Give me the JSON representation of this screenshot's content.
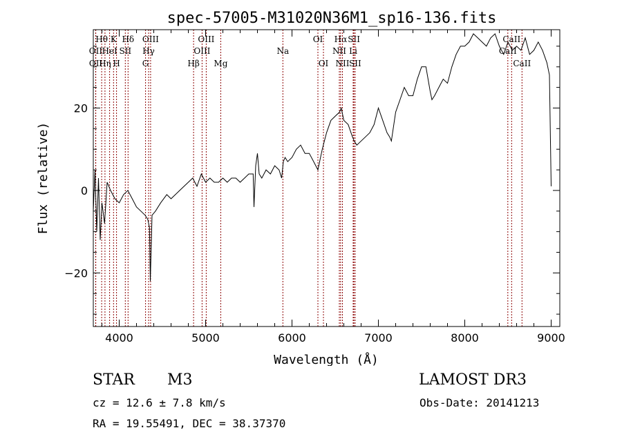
{
  "colors": {
    "spectrum": "#000000",
    "lines": "#8b0000",
    "axes": "#000000",
    "background": "#ffffff"
  },
  "chart_data": {
    "type": "line",
    "title": "spec-57005-M31020N36M1_sp16-136.fits",
    "xlabel": "Wavelength (Å)",
    "ylabel": "Flux (relative)",
    "xlim": [
      3700,
      9100
    ],
    "ylim": [
      -33,
      39
    ],
    "xticks": [
      4000,
      5000,
      6000,
      7000,
      8000,
      9000
    ],
    "yticks": [
      -20,
      0,
      20
    ],
    "series": [
      {
        "name": "flux",
        "x": [
          3700,
          3720,
          3740,
          3760,
          3780,
          3800,
          3830,
          3860,
          3900,
          3950,
          4000,
          4050,
          4100,
          4150,
          4200,
          4250,
          4300,
          4330,
          4350,
          4360,
          4380,
          4420,
          4480,
          4550,
          4600,
          4650,
          4700,
          4750,
          4800,
          4850,
          4900,
          4950,
          5000,
          5050,
          5100,
          5150,
          5200,
          5250,
          5300,
          5350,
          5400,
          5450,
          5500,
          5550,
          5560,
          5580,
          5600,
          5620,
          5650,
          5700,
          5750,
          5800,
          5850,
          5880,
          5900,
          5920,
          5950,
          6000,
          6050,
          6100,
          6150,
          6200,
          6250,
          6300,
          6320,
          6350,
          6400,
          6450,
          6500,
          6550,
          6570,
          6600,
          6650,
          6700,
          6720,
          6750,
          6800,
          6850,
          6900,
          6950,
          7000,
          7050,
          7100,
          7130,
          7150,
          7200,
          7250,
          7300,
          7350,
          7400,
          7450,
          7500,
          7550,
          7600,
          7620,
          7650,
          7700,
          7750,
          7800,
          7850,
          7900,
          7950,
          8000,
          8050,
          8100,
          8150,
          8200,
          8250,
          8300,
          8350,
          8400,
          8450,
          8500,
          8550,
          8600,
          8650,
          8700,
          8750,
          8800,
          8850,
          8900,
          8950,
          8980,
          9000
        ],
        "y": [
          -5,
          5,
          -10,
          3,
          -12,
          -3,
          -8,
          2,
          0,
          -2,
          -3,
          -1,
          0,
          -2,
          -4,
          -5,
          -6,
          -7,
          -9,
          -22,
          -6,
          -5,
          -3,
          -1,
          -2,
          -1,
          0,
          1,
          2,
          3,
          1,
          4,
          2,
          3,
          2,
          2,
          3,
          2,
          3,
          3,
          2,
          3,
          4,
          4,
          -4,
          6,
          9,
          4,
          3,
          5,
          4,
          6,
          5,
          3,
          7,
          8,
          7,
          8,
          10,
          11,
          9,
          9,
          7,
          5,
          7,
          10,
          14,
          17,
          18,
          19,
          20,
          17,
          16,
          13,
          12,
          11,
          12,
          13,
          14,
          16,
          20,
          17,
          14,
          13,
          12,
          19,
          22,
          25,
          23,
          23,
          27,
          30,
          30,
          24,
          22,
          23,
          25,
          27,
          26,
          30,
          33,
          35,
          35,
          36,
          38,
          37,
          36,
          35,
          37,
          38,
          35,
          33,
          36,
          34,
          35,
          34,
          37,
          33,
          34,
          36,
          34,
          31,
          28,
          1
        ]
      }
    ],
    "emission_lines": [
      {
        "label": "Hθ",
        "x": 3797,
        "row": 1
      },
      {
        "label": "OII",
        "x": 3727,
        "row": 2
      },
      {
        "label": "OII",
        "x": 3729,
        "row": 3
      },
      {
        "label": "K",
        "x": 3934,
        "row": 1
      },
      {
        "label": "HeI",
        "x": 3889,
        "row": 2
      },
      {
        "label": "Hη",
        "x": 3835,
        "row": 3
      },
      {
        "label": "H",
        "x": 3969,
        "row": 3
      },
      {
        "label": "Hδ",
        "x": 4102,
        "row": 1
      },
      {
        "label": "SII",
        "x": 4070,
        "row": 2
      },
      {
        "label": "OIII",
        "x": 4363,
        "row": 1
      },
      {
        "label": "Hγ",
        "x": 4340,
        "row": 2
      },
      {
        "label": "G",
        "x": 4305,
        "row": 3
      },
      {
        "label": "OIII",
        "x": 5007,
        "row": 1
      },
      {
        "label": "OIII",
        "x": 4959,
        "row": 2
      },
      {
        "label": "Hβ",
        "x": 4861,
        "row": 3
      },
      {
        "label": "Mg",
        "x": 5175,
        "row": 3
      },
      {
        "label": "Na",
        "x": 5894,
        "row": 2
      },
      {
        "label": "OI",
        "x": 6300,
        "row": 1
      },
      {
        "label": "OI",
        "x": 6364,
        "row": 3
      },
      {
        "label": "Hα",
        "x": 6563,
        "row": 1
      },
      {
        "label": "NII",
        "x": 6548,
        "row": 2
      },
      {
        "label": "NII",
        "x": 6584,
        "row": 3
      },
      {
        "label": "SII",
        "x": 6717,
        "row": 1
      },
      {
        "label": "Li",
        "x": 6708,
        "row": 2
      },
      {
        "label": "SII",
        "x": 6731,
        "row": 3
      },
      {
        "label": "CaII",
        "x": 8542,
        "row": 1
      },
      {
        "label": "CaII",
        "x": 8498,
        "row": 2
      },
      {
        "label": "CaII",
        "x": 8662,
        "row": 3
      }
    ]
  },
  "info": {
    "object_class": "STAR",
    "subclass": "M3",
    "survey": "LAMOST DR3",
    "redshift": "cz = 12.6 ± 7.8 km/s",
    "obs_date": "Obs-Date: 20141213",
    "coords": "RA =  19.55491, DEC =  38.37370"
  }
}
